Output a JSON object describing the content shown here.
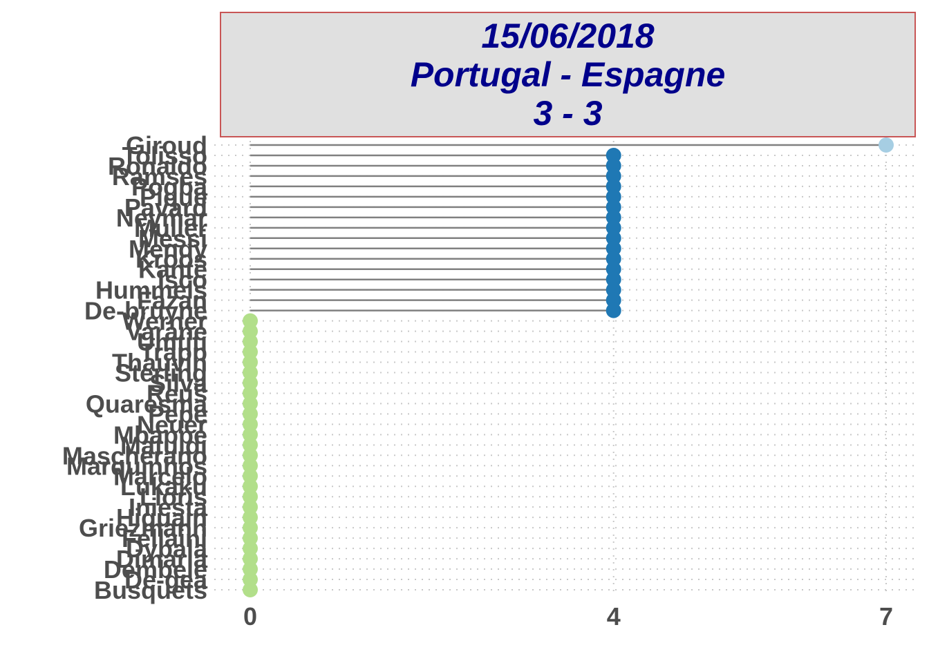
{
  "title": {
    "line1": "15/06/2018",
    "line2": "Portugal - Espagne",
    "line3": "3 - 3"
  },
  "chart_data": {
    "type": "lollipop",
    "xlim": [
      0,
      7
    ],
    "x_ticks": [
      0,
      4,
      7
    ],
    "grid": "dotted",
    "colors": {
      "7": "#a6cee3",
      "4": "#1f78b4",
      "0": "#b2df8a",
      "stem": "#808080",
      "grid": "#c8c8c8"
    },
    "categories": [
      "Giroud",
      "Tolisso",
      "Ronaldo",
      "Ramses",
      "Pogba",
      "Pique",
      "Pavard",
      "Neymar",
      "Muller",
      "Messi",
      "Mendy",
      "Kroos",
      "Kante",
      "Isco",
      "Hummels",
      "Fazan",
      "De-bruyne",
      "Werner",
      "Varane",
      "Umtiti",
      "Trapp",
      "Thauvin",
      "Sterling",
      "Silva",
      "Reus",
      "Quaresma",
      "Pepe",
      "Neuer",
      "Mbappe",
      "Matuidi",
      "Mascherano",
      "Marquinhos",
      "Marcelo",
      "Lukaku",
      "Lloris",
      "Iniesta",
      "Higuain",
      "Griezmann",
      "Fellaini",
      "Dybala",
      "Dimaria",
      "Dembele",
      "De-gea",
      "Busquets"
    ],
    "values": [
      7,
      4,
      4,
      4,
      4,
      4,
      4,
      4,
      4,
      4,
      4,
      4,
      4,
      4,
      4,
      4,
      4,
      0,
      0,
      0,
      0,
      0,
      0,
      0,
      0,
      0,
      0,
      0,
      0,
      0,
      0,
      0,
      0,
      0,
      0,
      0,
      0,
      0,
      0,
      0,
      0,
      0,
      0,
      0
    ]
  }
}
